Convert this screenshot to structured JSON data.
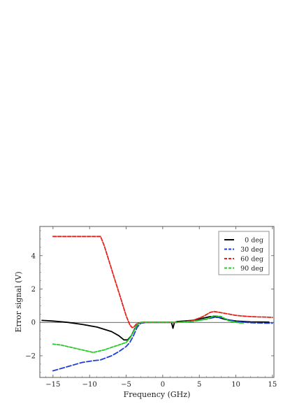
{
  "chart_data": {
    "type": "line",
    "title": "",
    "xlabel": "Frequency (GHz)",
    "ylabel": "Error signal (V)",
    "xlim": [
      -16.8,
      15.2
    ],
    "ylim": [
      -3.3,
      5.75
    ],
    "xticks": [
      -15,
      -10,
      -5,
      0,
      5,
      10,
      15
    ],
    "xtick_labels": [
      "−15",
      "−10",
      "−5",
      "0",
      "5",
      "10",
      "15"
    ],
    "yticks": [
      -2,
      0,
      2,
      4
    ],
    "ytick_labels": [
      "−2",
      "0",
      "2",
      "4"
    ],
    "grid": false,
    "zero_line": true,
    "legend": {
      "placement": "top-right"
    },
    "series": [
      {
        "name": "0 deg",
        "color": "#000000",
        "x": [
          -16.5,
          -15,
          -13,
          -11,
          -9,
          -7,
          -6,
          -5.3,
          -4.8,
          -4.3,
          -3.8,
          -3.3,
          -2.8,
          -2,
          0,
          1.2,
          1.4,
          1.6,
          2,
          4,
          5.5,
          6.5,
          7.5,
          8.5,
          10,
          12,
          14.5
        ],
        "y": [
          0.12,
          0.08,
          0.0,
          -0.12,
          -0.28,
          -0.55,
          -0.8,
          -1.05,
          -1.05,
          -0.8,
          -0.35,
          -0.05,
          0.0,
          0.0,
          0.0,
          0.0,
          -0.35,
          0.0,
          0.05,
          0.12,
          0.25,
          0.35,
          0.32,
          0.18,
          0.08,
          0.03,
          0.02
        ]
      },
      {
        "name": "30 deg",
        "color": "#1f3fd6",
        "x": [
          -15,
          -13,
          -11,
          -9.5,
          -8.5,
          -7,
          -6,
          -5,
          -4.5,
          -4,
          -3.5,
          -3,
          -2,
          0,
          2,
          4,
          6,
          7,
          8,
          9,
          10,
          12,
          14,
          15
        ],
        "y": [
          -2.9,
          -2.65,
          -2.4,
          -2.3,
          -2.25,
          -2.0,
          -1.75,
          -1.45,
          -1.2,
          -0.8,
          -0.3,
          -0.05,
          0.0,
          0.0,
          0.0,
          0.05,
          0.2,
          0.3,
          0.3,
          0.15,
          0.05,
          -0.02,
          -0.05,
          -0.05
        ]
      },
      {
        "name": "60 deg",
        "color": "#e8201a",
        "x": [
          -15,
          -12,
          -10,
          -9,
          -8.5,
          -8,
          -7.5,
          -7,
          -6.5,
          -6,
          -5.5,
          -5,
          -4.5,
          -4.2,
          -4,
          -3.6,
          -3,
          -2,
          0,
          2,
          4,
          5.5,
          6.5,
          7,
          7.5,
          8,
          9,
          10,
          11,
          12,
          13,
          14,
          15
        ],
        "y": [
          5.15,
          5.15,
          5.15,
          5.15,
          5.15,
          4.6,
          3.9,
          3.2,
          2.5,
          1.8,
          1.1,
          0.4,
          -0.15,
          -0.3,
          -0.3,
          -0.1,
          0.0,
          0.0,
          0.0,
          0.0,
          0.1,
          0.35,
          0.6,
          0.65,
          0.62,
          0.58,
          0.5,
          0.42,
          0.38,
          0.35,
          0.33,
          0.32,
          0.3
        ]
      },
      {
        "name": "90 deg",
        "color": "#22cc22",
        "x": [
          -15,
          -14,
          -13,
          -12,
          -11,
          -10,
          -9.5,
          -9,
          -8,
          -7,
          -6,
          -5,
          -4.5,
          -4,
          -3.5,
          -3,
          -2,
          0,
          2,
          4,
          6,
          7,
          8,
          9,
          10,
          11
        ],
        "y": [
          -1.3,
          -1.35,
          -1.45,
          -1.55,
          -1.65,
          -1.75,
          -1.8,
          -1.75,
          -1.65,
          -1.5,
          -1.35,
          -1.2,
          -0.95,
          -0.55,
          -0.15,
          0.0,
          0.0,
          0.0,
          0.0,
          0.05,
          0.2,
          0.4,
          0.35,
          0.1,
          0.0,
          -0.05
        ]
      }
    ]
  }
}
